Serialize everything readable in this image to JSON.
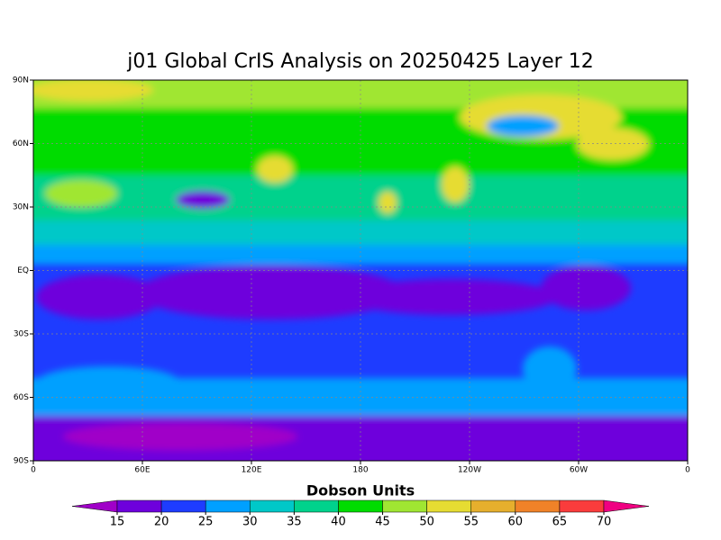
{
  "map": {
    "title": "j01 Global CrIS Analysis on 20250425 Layer 12",
    "lat_labels": [
      "90N",
      "60N",
      "30N",
      "EQ",
      "30S",
      "60S",
      "90S"
    ],
    "lon_labels": [
      "0",
      "60E",
      "120E",
      "180",
      "120W",
      "60W",
      "0"
    ]
  },
  "colorbar": {
    "title": "Dobson Units",
    "levels": [
      15,
      20,
      25,
      30,
      35,
      40,
      45,
      50,
      55,
      60,
      65,
      70
    ],
    "colors": [
      "#a000c8",
      "#6e00dc",
      "#1e3cff",
      "#00a0ff",
      "#00c8c8",
      "#00d28c",
      "#00dc00",
      "#a0e632",
      "#e6dc32",
      "#e6af2d",
      "#f08228",
      "#fa3c3c",
      "#f00082"
    ]
  }
}
